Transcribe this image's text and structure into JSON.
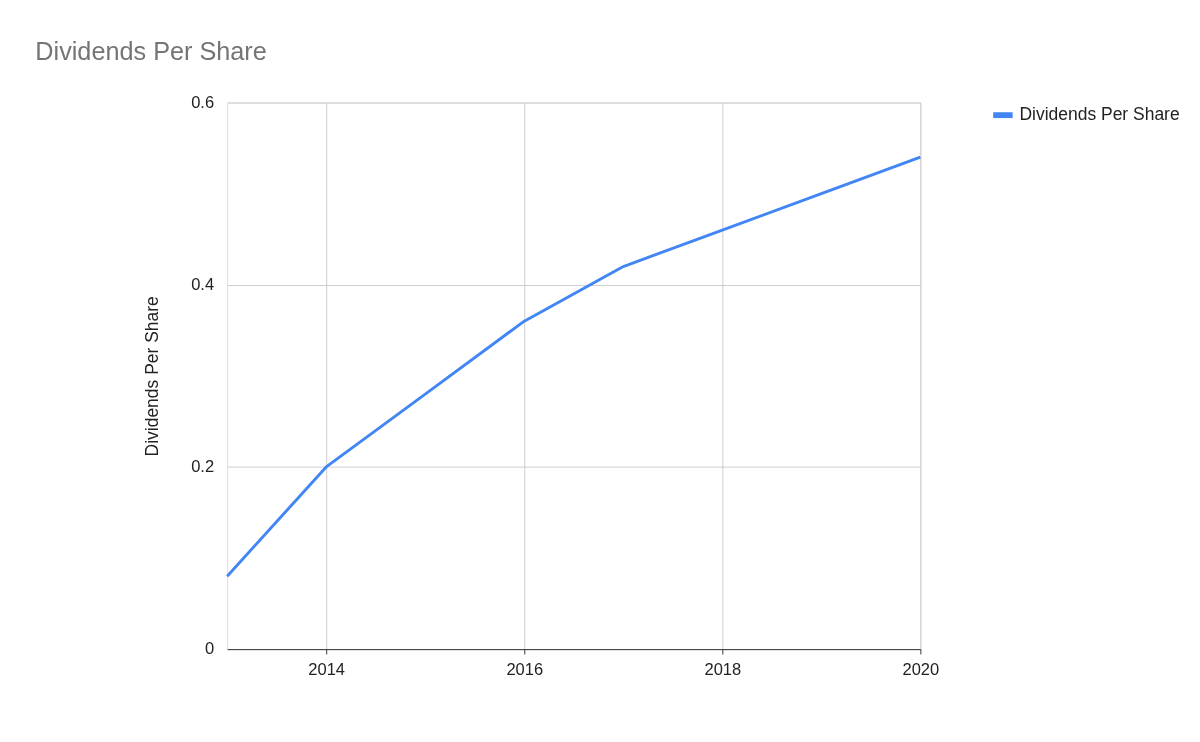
{
  "chart_data": {
    "type": "line",
    "title": "Dividends Per Share",
    "ylabel": "Dividends Per Share",
    "x": [
      2013,
      2014,
      2015,
      2016,
      2017,
      2018,
      2019,
      2020
    ],
    "series": [
      {
        "name": "Dividends Per Share",
        "color": "#4285f4",
        "values": [
          0.08,
          0.2,
          0.28,
          0.36,
          0.42,
          0.46,
          0.5,
          0.54
        ]
      }
    ],
    "xlim": [
      2013,
      2020
    ],
    "xticks": [
      2014,
      2016,
      2018,
      2020
    ],
    "ylim": [
      0,
      0.6
    ],
    "yticks": [
      0,
      0.2,
      0.4,
      0.6
    ],
    "grid": true,
    "legend": "top right",
    "marker": "none",
    "line_style": "solid"
  }
}
